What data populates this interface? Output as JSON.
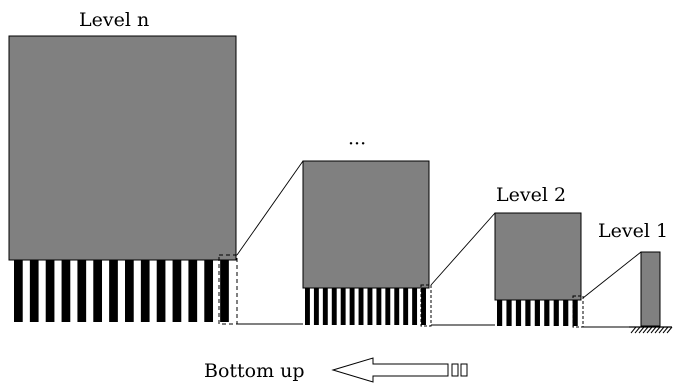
{
  "labels": {
    "level_n": "Level n",
    "ellipsis": "···",
    "level_2": "Level 2",
    "level_1": "Level 1",
    "bottom_up": "Bottom up"
  },
  "colors": {
    "block_fill": "#808080",
    "stroke": "#000000",
    "background": "#ffffff"
  },
  "levels": [
    {
      "name": "level-n",
      "stripes": 14
    },
    {
      "name": "level-ellipsis",
      "stripes": 14
    },
    {
      "name": "level-2",
      "stripes": 9
    },
    {
      "name": "level-1",
      "stripes": 0
    }
  ]
}
